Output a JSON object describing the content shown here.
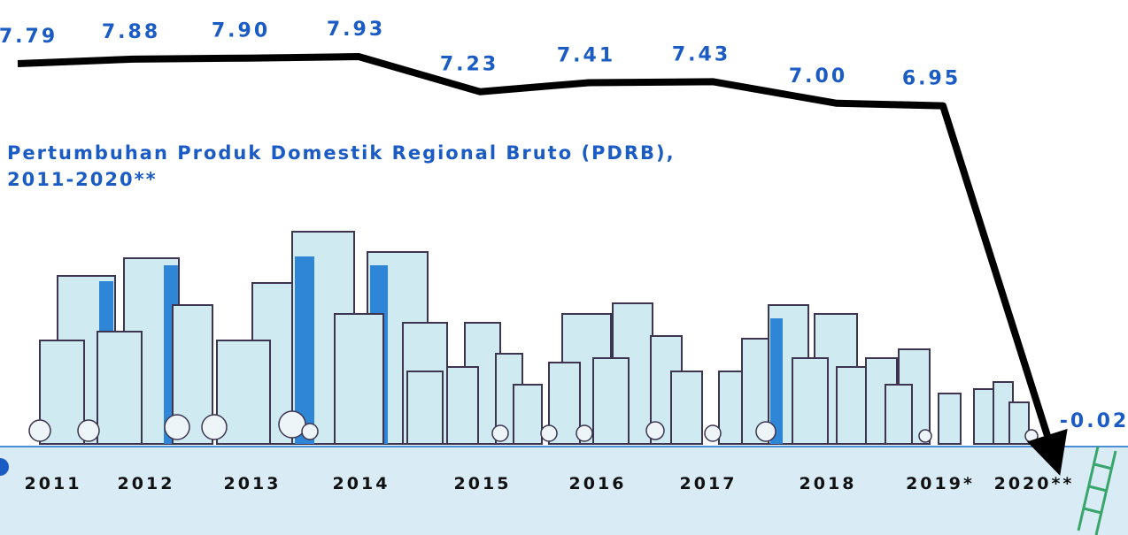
{
  "chart_data": {
    "type": "line",
    "title": [
      "Pertumbuhan Produk Domestik Regional Bruto (PDRB),",
      "2011-2020**"
    ],
    "categories": [
      "2011",
      "2012",
      "2013",
      "2014",
      "2015",
      "2016",
      "2017",
      "2018",
      "2019*",
      "2020**"
    ],
    "values": [
      7.79,
      7.88,
      7.9,
      7.93,
      7.23,
      7.41,
      7.43,
      7.0,
      6.95,
      -0.02
    ],
    "value_labels": [
      "7.79",
      "7.88",
      "7.90",
      "7.93",
      "7.23",
      "7.41",
      "7.43",
      "7.00",
      "6.95",
      "-0.02"
    ],
    "color": "#000000"
  }
}
